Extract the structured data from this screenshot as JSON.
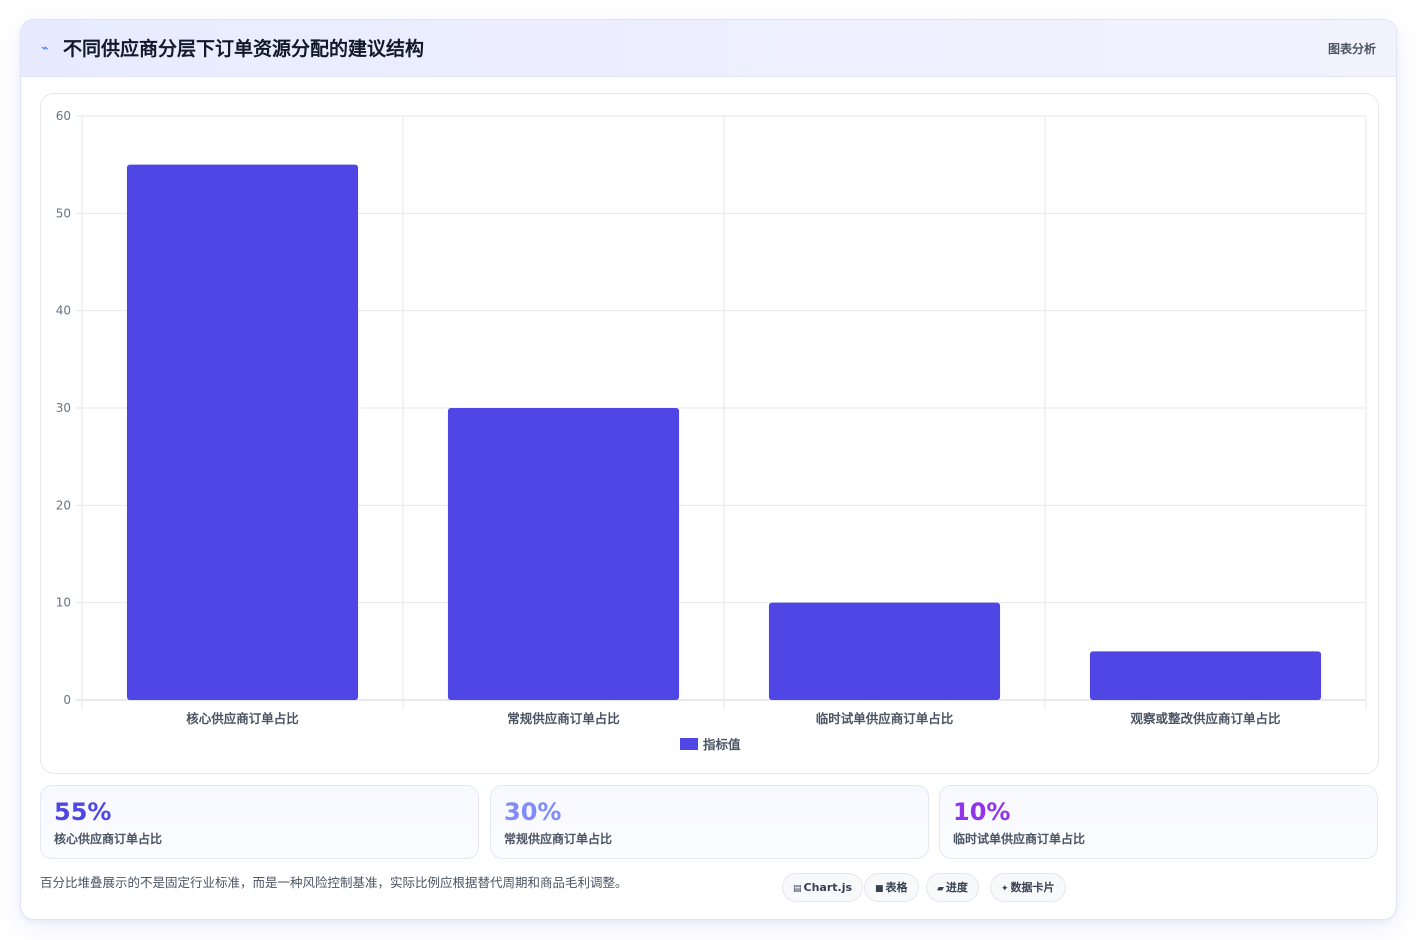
{
  "header": {
    "title": "不同供应商分层下订单资源分配的建议结构",
    "title_icon": "chart-line-icon",
    "tag": "图表分析"
  },
  "chart_data": {
    "type": "bar",
    "categories": [
      "核心供应商订单占比",
      "常规供应商订单占比",
      "临时试单供应商订单占比",
      "观察或整改供应商订单占比"
    ],
    "series": [
      {
        "name": "指标值",
        "values": [
          55,
          30,
          10,
          5
        ],
        "color": "#4f46e5"
      }
    ],
    "ylim": [
      0,
      60
    ],
    "yticks": [
      0,
      10,
      20,
      30,
      40,
      50,
      60
    ],
    "grid": true,
    "legend_position": "bottom"
  },
  "stats": [
    {
      "value": "55%",
      "label": "核心供应商订单占比",
      "color": "#4f46e5"
    },
    {
      "value": "30%",
      "label": "常规供应商订单占比",
      "color": "#818cf8"
    },
    {
      "value": "10%",
      "label": "临时试单供应商订单占比",
      "color": "#9333ea"
    }
  ],
  "footnote": "百分比堆叠展示的不是固定行业标准，而是一种风险控制基准，实际比例应根据替代周期和商品毛利调整。",
  "chips": [
    {
      "icon": "▤",
      "icon_name": "chart-icon",
      "label": "Chart.js"
    },
    {
      "icon": "■",
      "icon_name": "table-icon",
      "label": "表格"
    },
    {
      "icon": "▰",
      "icon_name": "progress-icon",
      "label": "进度"
    },
    {
      "icon": "✦",
      "icon_name": "sparkle-icon",
      "label": "数据卡片"
    }
  ]
}
